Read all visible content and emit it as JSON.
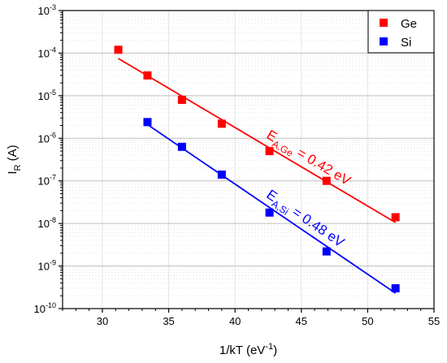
{
  "chart_data": {
    "type": "scatter",
    "xlabel": {
      "main": "1/kT (eV",
      "sup": "-1",
      "tail": ")"
    },
    "ylabel": {
      "main": "I",
      "sub": "R",
      "tail": " (A)"
    },
    "xlim": [
      27,
      55
    ],
    "xticks": [
      30,
      35,
      40,
      45,
      50,
      55
    ],
    "ylim": [
      1e-10,
      0.001
    ],
    "yscale": "log",
    "yticks": [
      {
        "value": 1e-10,
        "base": "10",
        "exp": "-10"
      },
      {
        "value": 1e-09,
        "base": "10",
        "exp": "-9"
      },
      {
        "value": 1e-08,
        "base": "10",
        "exp": "-8"
      },
      {
        "value": 1e-07,
        "base": "10",
        "exp": "-7"
      },
      {
        "value": 1e-06,
        "base": "10",
        "exp": "-6"
      },
      {
        "value": 1e-05,
        "base": "10",
        "exp": "-5"
      },
      {
        "value": 0.0001,
        "base": "10",
        "exp": "-4"
      },
      {
        "value": 0.001,
        "base": "10",
        "exp": "-3"
      }
    ],
    "grid": true,
    "legend_position": "top-right",
    "series": [
      {
        "name": "Ge",
        "color": "#ff0000",
        "x": [
          31.2,
          33.4,
          36.0,
          39.0,
          42.6,
          46.9,
          52.1
        ],
        "y": [
          0.00012,
          3e-05,
          8e-06,
          2.2e-06,
          5e-07,
          1e-07,
          1.4e-08
        ],
        "fit": {
          "x": [
            31.2,
            52.1
          ],
          "y": [
            7.5e-05,
            1.05e-08
          ]
        },
        "annotation": {
          "main": "E",
          "sub": "A,Ge",
          "tail": " = 0.42 eV"
        }
      },
      {
        "name": "Si",
        "color": "#0000ff",
        "x": [
          33.4,
          36.0,
          39.0,
          42.6,
          46.9,
          52.1
        ],
        "y": [
          2.4e-06,
          6.3e-07,
          1.4e-07,
          1.8e-08,
          2.2e-09,
          3e-10
        ],
        "fit": {
          "x": [
            33.4,
            52.1
          ],
          "y": [
            2.1e-06,
            2.3e-10
          ]
        },
        "annotation": {
          "main": "E",
          "sub": "A,Si",
          "tail": " = 0.48 eV"
        }
      }
    ]
  }
}
